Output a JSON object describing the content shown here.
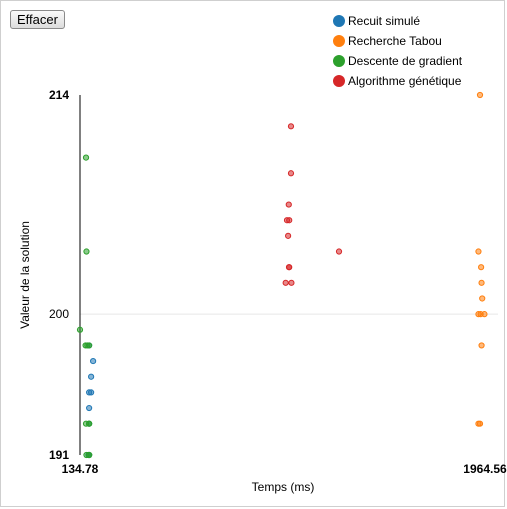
{
  "toolbar": {
    "clear_label": "Effacer"
  },
  "colors": {
    "recuit": "#1f77b4",
    "tabou": "#ff7f0e",
    "gradient": "#2ca02c",
    "genetic": "#d62728"
  },
  "legend": [
    {
      "label": "Recuit simulé",
      "color": "#1f77b4"
    },
    {
      "label": "Recherche Tabou",
      "color": "#ff7f0e"
    },
    {
      "label": "Descente de gradient",
      "color": "#2ca02c"
    },
    {
      "label": "Algorithme génétique",
      "color": "#d62728"
    }
  ],
  "chart_data": {
    "type": "scatter",
    "xlabel": "Temps (ms)",
    "ylabel": "Valeur de la solution",
    "xlim": [
      134.78,
      1964.56
    ],
    "ylim": [
      191,
      214
    ],
    "x_ticks": [
      "134.78",
      "1964.56"
    ],
    "y_ticks": [
      "214",
      "200",
      "191"
    ],
    "grid_y": [
      200
    ],
    "series": [
      {
        "name": "Recuit simulé",
        "color": "#1f77b4",
        "x": [
          176,
          176,
          185,
          185,
          194,
          176,
          176,
          176,
          173
        ],
        "y": [
          194,
          195,
          195,
          196,
          197,
          193,
          191,
          198,
          191
        ]
      },
      {
        "name": "Recherche Tabou",
        "color": "#ff7f0e",
        "x": [
          1942,
          1935,
          1947,
          1949,
          1952,
          1945,
          1935,
          1962,
          1949,
          1935,
          1942
        ],
        "y": [
          214,
          204,
          203,
          202,
          201,
          200,
          200,
          200,
          198,
          193,
          193
        ]
      },
      {
        "name": "Descente de gradient",
        "color": "#2ca02c",
        "x": [
          162,
          164,
          134.78,
          160,
          168,
          162,
          176,
          164,
          176,
          176,
          176,
          176
        ],
        "y": [
          210,
          204,
          199,
          198,
          198,
          193,
          193,
          191,
          191,
          198,
          191,
          193
        ]
      },
      {
        "name": "Algorithme génétique",
        "color": "#d62728",
        "x": [
          1088,
          1088,
          1078,
          1080,
          1070,
          1075,
          1079,
          1090,
          1305,
          1080,
          1064
        ],
        "y": [
          212,
          209,
          207,
          206,
          206,
          205,
          203,
          202,
          204,
          203,
          202
        ]
      }
    ]
  }
}
